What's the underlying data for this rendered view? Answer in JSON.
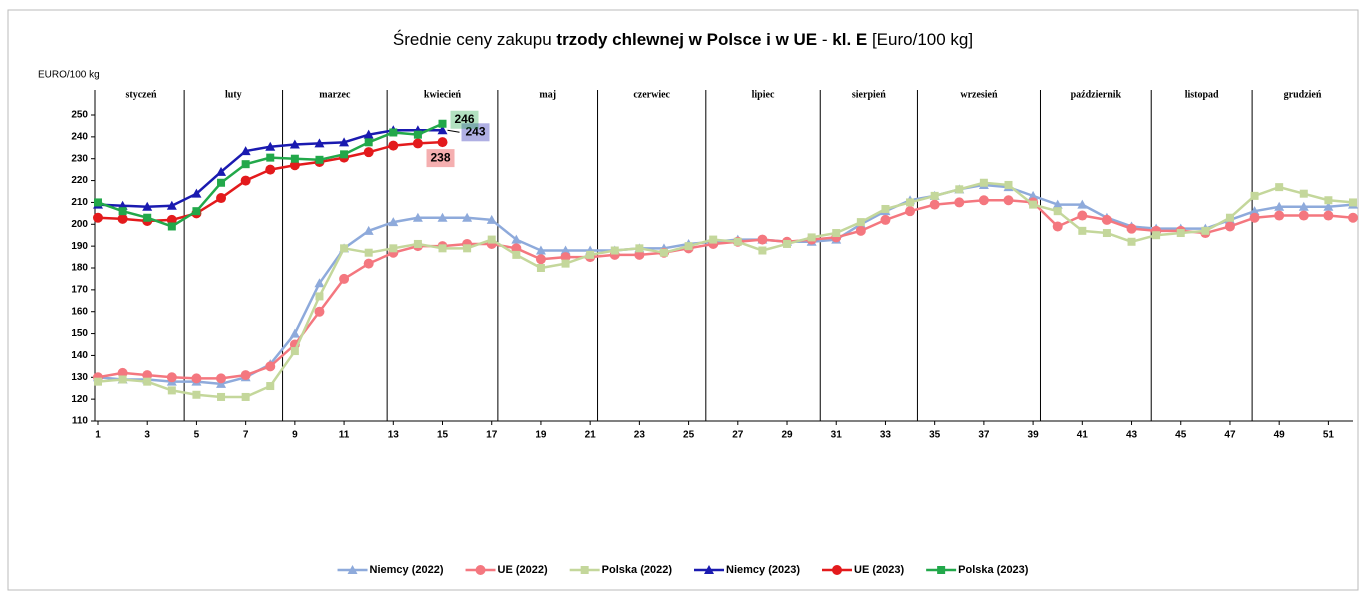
{
  "chart_data": {
    "type": "line",
    "title_parts": [
      {
        "text": "Średnie ceny zakupu ",
        "bold": false
      },
      {
        "text": "trzody chlewnej w Polsce i w UE",
        "bold": true
      },
      {
        "text": " - ",
        "bold": false
      },
      {
        "text": "kl. E",
        "bold": true
      },
      {
        "text": " [Euro/100 kg]",
        "bold": false
      }
    ],
    "y_label": "EURO/100 kg",
    "months": [
      "styczeń",
      "luty",
      "marzec",
      "kwiecień",
      "maj",
      "czerwiec",
      "lipiec",
      "sierpień",
      "wrzesień",
      "październik",
      "listopad",
      "grudzień"
    ],
    "month_bounds": [
      4.5,
      8.5,
      12.75,
      17.25,
      21.3,
      25.7,
      30.35,
      34.3,
      39.3,
      43.8,
      47.9
    ],
    "x": [
      1,
      2,
      3,
      4,
      5,
      6,
      7,
      8,
      9,
      10,
      11,
      12,
      13,
      14,
      15,
      16,
      17,
      18,
      19,
      20,
      21,
      22,
      23,
      24,
      25,
      26,
      27,
      28,
      29,
      30,
      31,
      32,
      33,
      34,
      35,
      36,
      37,
      38,
      39,
      40,
      41,
      42,
      43,
      44,
      45,
      46,
      47,
      48,
      49,
      50,
      51,
      52
    ],
    "xlim": [
      1,
      52
    ],
    "xticks": [
      1,
      3,
      5,
      7,
      9,
      11,
      13,
      15,
      17,
      19,
      21,
      23,
      25,
      27,
      29,
      31,
      33,
      35,
      37,
      39,
      41,
      43,
      45,
      47,
      49,
      51
    ],
    "ylim": [
      110,
      250
    ],
    "yticks": [
      110,
      120,
      130,
      140,
      150,
      160,
      170,
      180,
      190,
      200,
      210,
      220,
      230,
      240,
      250
    ],
    "series": [
      {
        "name": "Niemcy (2022)",
        "color": "#8eaadb",
        "marker": "triangle",
        "values": [
          130,
          129,
          129,
          128,
          128,
          127,
          130,
          136,
          150,
          173,
          189,
          197,
          201,
          203,
          203,
          203,
          202,
          193,
          188,
          188,
          188,
          188,
          189,
          189,
          191,
          192,
          193,
          193,
          192,
          192,
          193,
          200,
          206,
          211,
          213,
          216,
          218,
          217,
          213,
          209,
          209,
          203,
          199,
          198,
          198,
          198,
          202,
          206,
          208,
          208,
          208,
          209
        ]
      },
      {
        "name": "UE (2022)",
        "color": "#f4777f",
        "marker": "circle",
        "values": [
          130,
          132,
          131,
          130,
          129.5,
          129.5,
          131,
          135,
          145,
          160,
          175,
          182,
          187,
          190,
          190,
          191,
          191,
          189,
          184,
          185,
          185,
          186,
          186,
          187,
          189,
          191,
          192,
          193,
          192,
          193,
          194,
          197,
          202,
          206,
          209,
          210,
          211,
          211,
          210,
          199,
          204,
          202,
          198,
          197,
          197,
          196,
          199,
          203,
          204,
          204,
          204,
          203
        ]
      },
      {
        "name": "Polska (2022)",
        "color": "#c4d79b",
        "marker": "square",
        "values": [
          128,
          129,
          128,
          124,
          122,
          121,
          121,
          126,
          142,
          167,
          189,
          187,
          189,
          191,
          189,
          189,
          193,
          186,
          180,
          182,
          186,
          188,
          189,
          187,
          190,
          193,
          192,
          188,
          191,
          194,
          196,
          201,
          207,
          210,
          213,
          216,
          219,
          218,
          209,
          206,
          197,
          196,
          192,
          195,
          196,
          197,
          203,
          213,
          217,
          214,
          211,
          210
        ]
      },
      {
        "name": "Niemcy (2023)",
        "color": "#1a1ab0",
        "marker": "triangle",
        "values": [
          209,
          208.5,
          208,
          208.5,
          214,
          224,
          233.5,
          235.5,
          236.5,
          237,
          237.5,
          241,
          243,
          243,
          243,
          null,
          null,
          null,
          null,
          null,
          null,
          null,
          null,
          null,
          null,
          null,
          null,
          null,
          null,
          null,
          null,
          null,
          null,
          null,
          null,
          null,
          null,
          null,
          null,
          null,
          null,
          null,
          null,
          null,
          null,
          null,
          null,
          null,
          null,
          null,
          null,
          null
        ],
        "value_labels": [
          null,
          null,
          null,
          null,
          null,
          null,
          null,
          null,
          null,
          null,
          null,
          null,
          null,
          null,
          "243",
          null,
          null,
          null,
          null,
          null,
          null,
          null,
          null,
          null,
          null,
          null,
          null,
          null,
          null,
          null,
          null,
          null,
          null,
          null,
          null,
          null,
          null,
          null,
          null,
          null,
          null,
          null,
          null,
          null,
          null,
          null,
          null,
          null,
          null,
          null,
          null,
          null
        ]
      },
      {
        "name": "UE (2023)",
        "color": "#e31a1c",
        "marker": "circle",
        "values": [
          203,
          202.5,
          201.5,
          202,
          205,
          212,
          220,
          225,
          227,
          228.5,
          230.5,
          233,
          236,
          237,
          237.6,
          null,
          null,
          null,
          null,
          null,
          null,
          null,
          null,
          null,
          null,
          null,
          null,
          null,
          null,
          null,
          null,
          null,
          null,
          null,
          null,
          null,
          null,
          null,
          null,
          null,
          null,
          null,
          null,
          null,
          null,
          null,
          null,
          null,
          null,
          null,
          null,
          null
        ],
        "value_labels": [
          null,
          null,
          null,
          null,
          null,
          null,
          null,
          null,
          null,
          null,
          null,
          null,
          null,
          null,
          "238",
          null,
          null,
          null,
          null,
          null,
          null,
          null,
          null,
          null,
          null,
          null,
          null,
          null,
          null,
          null,
          null,
          null,
          null,
          null,
          null,
          null,
          null,
          null,
          null,
          null,
          null,
          null,
          null,
          null,
          null,
          null,
          null,
          null,
          null,
          null,
          null,
          null
        ]
      },
      {
        "name": "Polska (2023)",
        "color": "#22a84a",
        "marker": "square",
        "values": [
          210,
          206,
          203,
          199,
          206,
          219,
          227.5,
          230.5,
          230,
          229.5,
          232,
          237.5,
          242,
          241,
          246,
          null,
          null,
          null,
          null,
          null,
          null,
          null,
          null,
          null,
          null,
          null,
          null,
          null,
          null,
          null,
          null,
          null,
          null,
          null,
          null,
          null,
          null,
          null,
          null,
          null,
          null,
          null,
          null,
          null,
          null,
          null,
          null,
          null,
          null,
          null,
          null,
          null
        ],
        "value_labels": [
          null,
          null,
          null,
          null,
          null,
          null,
          null,
          null,
          null,
          null,
          null,
          null,
          null,
          null,
          "246",
          null,
          null,
          null,
          null,
          null,
          null,
          null,
          null,
          null,
          null,
          null,
          null,
          null,
          null,
          null,
          null,
          null,
          null,
          null,
          null,
          null,
          null,
          null,
          null,
          null,
          null,
          null,
          null,
          null,
          null,
          null,
          null,
          null,
          null,
          null,
          null,
          null
        ]
      }
    ]
  }
}
